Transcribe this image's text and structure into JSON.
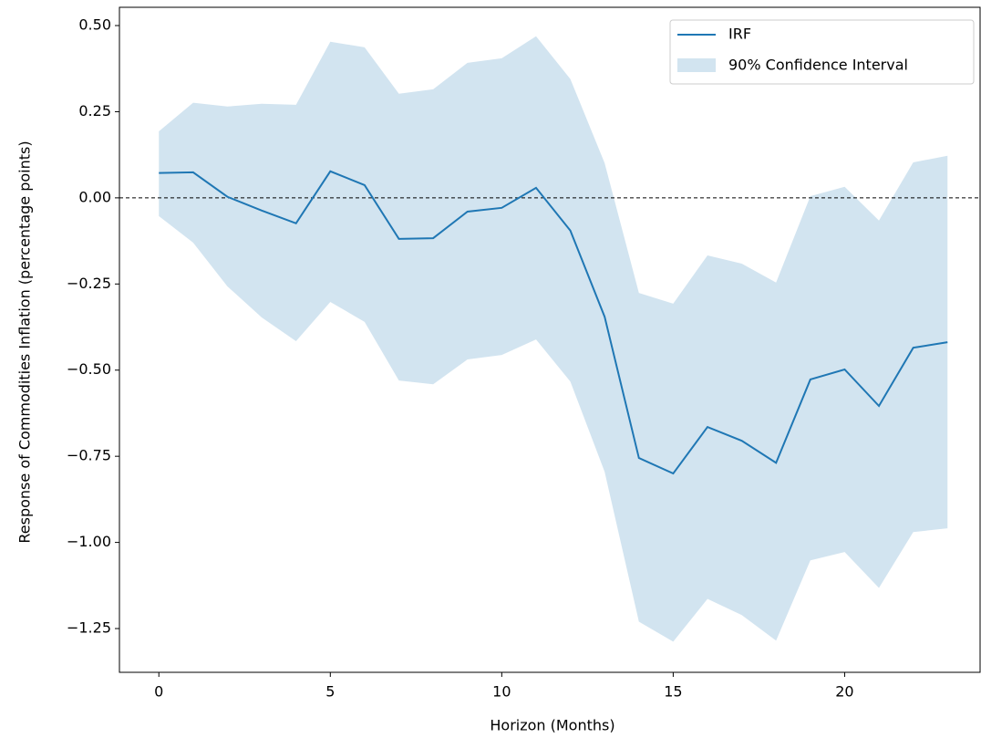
{
  "chart_data": {
    "type": "line",
    "x_label": "Horizon (Months)",
    "y_label": "Response of Commodities Inflation (percentage points)",
    "x": [
      0,
      1,
      2,
      3,
      4,
      5,
      6,
      7,
      8,
      9,
      10,
      11,
      12,
      13,
      14,
      15,
      16,
      17,
      18,
      19,
      20,
      21,
      22,
      23
    ],
    "series": [
      {
        "name": "IRF",
        "color": "#1f77b4",
        "values": [
          0.072,
          0.074,
          0.003,
          -0.037,
          -0.074,
          0.077,
          0.037,
          -0.119,
          -0.117,
          -0.04,
          -0.029,
          0.029,
          -0.095,
          -0.345,
          -0.755,
          -0.8,
          -0.665,
          -0.705,
          -0.769,
          -0.527,
          -0.498,
          -0.604,
          -0.435,
          -0.419
        ]
      }
    ],
    "band": {
      "name": "90% Confidence Interval",
      "color": "#1f77b4",
      "opacity": 0.2,
      "upper": [
        0.193,
        0.276,
        0.265,
        0.273,
        0.27,
        0.453,
        0.437,
        0.302,
        0.315,
        0.392,
        0.405,
        0.469,
        0.345,
        0.101,
        -0.276,
        -0.307,
        -0.167,
        -0.191,
        -0.246,
        0.005,
        0.032,
        -0.066,
        0.103,
        0.122
      ],
      "lower": [
        -0.053,
        -0.13,
        -0.257,
        -0.347,
        -0.416,
        -0.302,
        -0.36,
        -0.53,
        -0.541,
        -0.469,
        -0.456,
        -0.411,
        -0.533,
        -0.795,
        -1.23,
        -1.288,
        -1.164,
        -1.211,
        -1.285,
        -1.052,
        -1.028,
        -1.132,
        -0.97,
        -0.959
      ]
    },
    "reference_line": 0,
    "xlim": [
      -1.15,
      23.95
    ],
    "ylim": [
      -1.377,
      0.553
    ],
    "xticks": [
      0,
      5,
      10,
      15,
      20
    ],
    "yticks": [
      {
        "value": 0.5,
        "label": "0.50"
      },
      {
        "value": 0.25,
        "label": "0.25"
      },
      {
        "value": 0,
        "label": "0.00"
      },
      {
        "value": -0.25,
        "label": "−0.25"
      },
      {
        "value": -0.5,
        "label": "−0.50"
      },
      {
        "value": -0.75,
        "label": "−0.75"
      },
      {
        "value": -1,
        "label": "−1.00"
      },
      {
        "value": -1.25,
        "label": "−1.25"
      }
    ],
    "legend": "upper right"
  }
}
